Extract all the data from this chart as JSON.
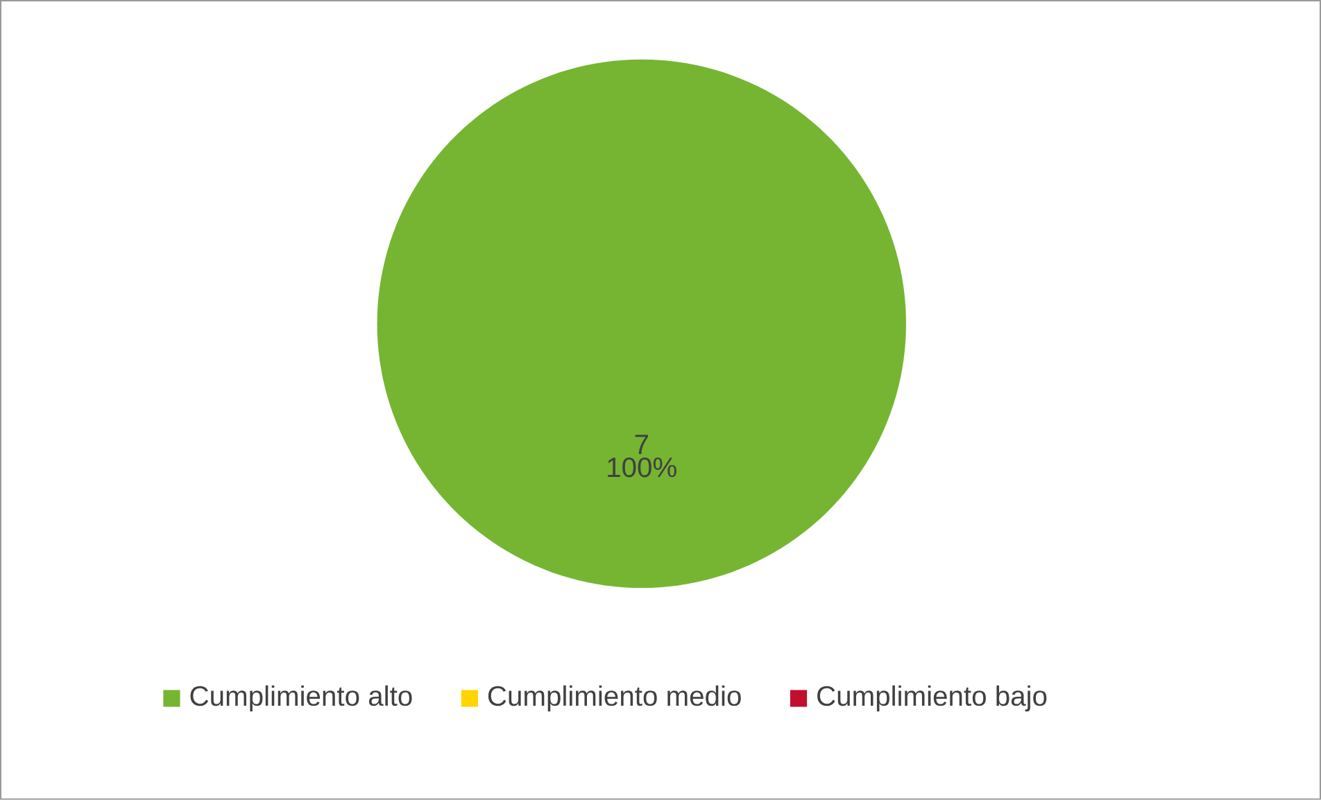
{
  "chart_data": {
    "type": "pie",
    "categories": [
      "Cumplimiento alto",
      "Cumplimiento medio",
      "Cumplimiento bajo"
    ],
    "values": [
      7,
      0,
      0
    ],
    "colors": [
      "#76b531",
      "#ffd500",
      "#c0102e"
    ],
    "value_labels": [
      "7",
      null,
      null
    ],
    "annotations": [
      {
        "text": "100%",
        "x": "Cumplimiento alto"
      }
    ],
    "legend": "bottom"
  }
}
